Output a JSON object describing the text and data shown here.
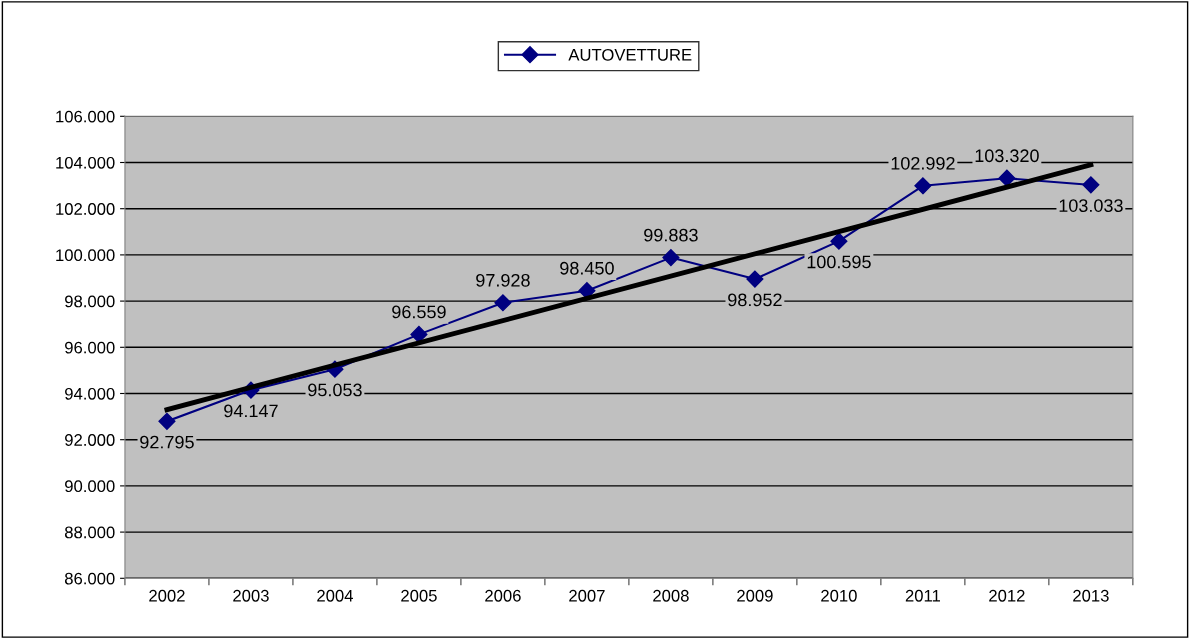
{
  "chart_data": {
    "type": "line",
    "categories": [
      "2002",
      "2003",
      "2004",
      "2005",
      "2006",
      "2007",
      "2008",
      "2009",
      "2010",
      "2011",
      "2012",
      "2013"
    ],
    "series": [
      {
        "name": "AUTOVETTURE",
        "color": "#000080",
        "marker": "diamond",
        "values": [
          92795,
          94147,
          95053,
          96559,
          97928,
          98450,
          99883,
          98952,
          100595,
          102992,
          103320,
          103033
        ],
        "value_labels": [
          "92.795",
          "94.147",
          "95.053",
          "96.559",
          "97.928",
          "98.450",
          "99.883",
          "98.952",
          "100.595",
          "102.992",
          "103.320",
          "103.033"
        ]
      },
      {
        "type": "line",
        "color": "#000000",
        "values": [
          93300,
          null,
          null,
          null,
          null,
          null,
          null,
          null,
          null,
          null,
          null,
          103900
        ]
      }
    ],
    "ylim": [
      86000,
      106000
    ],
    "yticks": [
      {
        "value": 86000,
        "label": "86.000"
      },
      {
        "value": 88000,
        "label": "88.000"
      },
      {
        "value": 90000,
        "label": "90.000"
      },
      {
        "value": 92000,
        "label": "92.000"
      },
      {
        "value": 94000,
        "label": "94.000"
      },
      {
        "value": 96000,
        "label": "96.000"
      },
      {
        "value": 98000,
        "label": "98.000"
      },
      {
        "value": 100000,
        "label": "100.000"
      },
      {
        "value": 102000,
        "label": "102.000"
      },
      {
        "value": 104000,
        "label": "104.000"
      },
      {
        "value": 106000,
        "label": "106.000"
      }
    ],
    "grid": "y",
    "legend": "top"
  }
}
